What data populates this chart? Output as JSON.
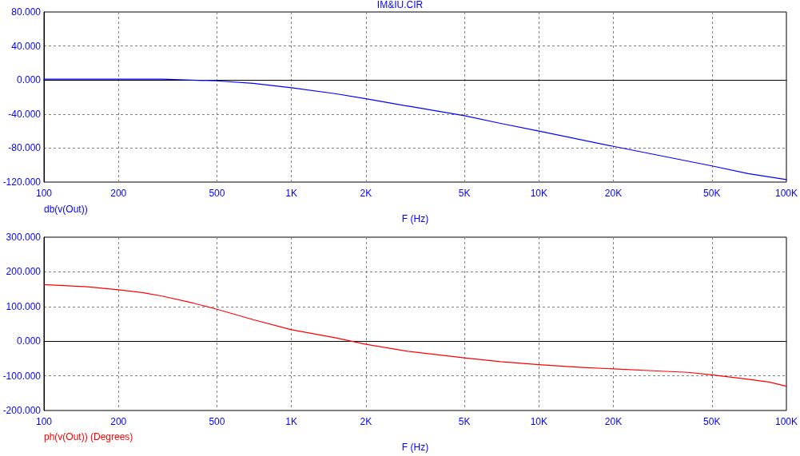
{
  "chart_data": [
    {
      "type": "line",
      "title": "IM&IU.CIR",
      "xlabel": "F (Hz)",
      "log": "x",
      "grid": true,
      "legend": "bottom left",
      "x": [
        100,
        200,
        300,
        500,
        700,
        1000,
        1500,
        2000,
        3000,
        5000,
        7000,
        10000,
        20000,
        50000,
        70000,
        100000
      ],
      "series": [
        {
          "name": "db(v(Out))",
          "color": "#0000ff",
          "values": [
            1,
            1,
            1,
            -1,
            -4,
            -9,
            -16,
            -22,
            -31,
            -42,
            -51,
            -60,
            -78,
            -101,
            -110,
            -117
          ]
        }
      ],
      "xlim": [
        100,
        100000
      ],
      "xticks": [
        100,
        200,
        500,
        {
          "value": 1000,
          "label": "1K"
        },
        {
          "value": 2000,
          "label": "2K"
        },
        {
          "value": 5000,
          "label": "5K"
        },
        {
          "value": 10000,
          "label": "10K"
        },
        {
          "value": 20000,
          "label": "20K"
        },
        {
          "value": 50000,
          "label": "50K"
        },
        {
          "value": 100000,
          "label": "100K"
        }
      ],
      "ylim": [
        -120,
        80
      ],
      "yticks": [
        {
          "value": -120,
          "label": "-120.000"
        },
        {
          "value": -80,
          "label": "-80.000"
        },
        {
          "value": -40,
          "label": "-40.000"
        },
        {
          "value": 0,
          "label": "0.000"
        },
        {
          "value": 40,
          "label": "40.000"
        },
        {
          "value": 80,
          "label": "80.000"
        }
      ]
    },
    {
      "type": "line",
      "xlabel": "F (Hz)",
      "log": "x",
      "grid": true,
      "legend": "bottom left",
      "x": [
        100,
        150,
        200,
        250,
        300,
        400,
        500,
        700,
        1000,
        1500,
        2000,
        3000,
        5000,
        7000,
        10000,
        15000,
        20000,
        30000,
        40000,
        50000,
        70000,
        85000,
        100000
      ],
      "series": [
        {
          "name": "ph(v(Out)) (Degrees)",
          "color": "#ff0000",
          "values": [
            163,
            157,
            148,
            140,
            130,
            110,
            92,
            62,
            33,
            10,
            -9,
            -30,
            -48,
            -59,
            -68,
            -76,
            -80,
            -86,
            -90,
            -97,
            -110,
            -118,
            -130
          ]
        }
      ],
      "xlim": [
        100,
        100000
      ],
      "xticks": [
        100,
        200,
        500,
        {
          "value": 1000,
          "label": "1K"
        },
        {
          "value": 2000,
          "label": "2K"
        },
        {
          "value": 5000,
          "label": "5K"
        },
        {
          "value": 10000,
          "label": "10K"
        },
        {
          "value": 20000,
          "label": "20K"
        },
        {
          "value": 50000,
          "label": "50K"
        },
        {
          "value": 100000,
          "label": "100K"
        }
      ],
      "ylim": [
        -200,
        300
      ],
      "yticks": [
        {
          "value": -200,
          "label": "-200.000"
        },
        {
          "value": -100,
          "label": "-100.000"
        },
        {
          "value": 0,
          "label": "0.000"
        },
        {
          "value": 100,
          "label": "100.000"
        },
        {
          "value": 200,
          "label": "200.000"
        },
        {
          "value": 300,
          "label": "300.000"
        }
      ]
    }
  ]
}
